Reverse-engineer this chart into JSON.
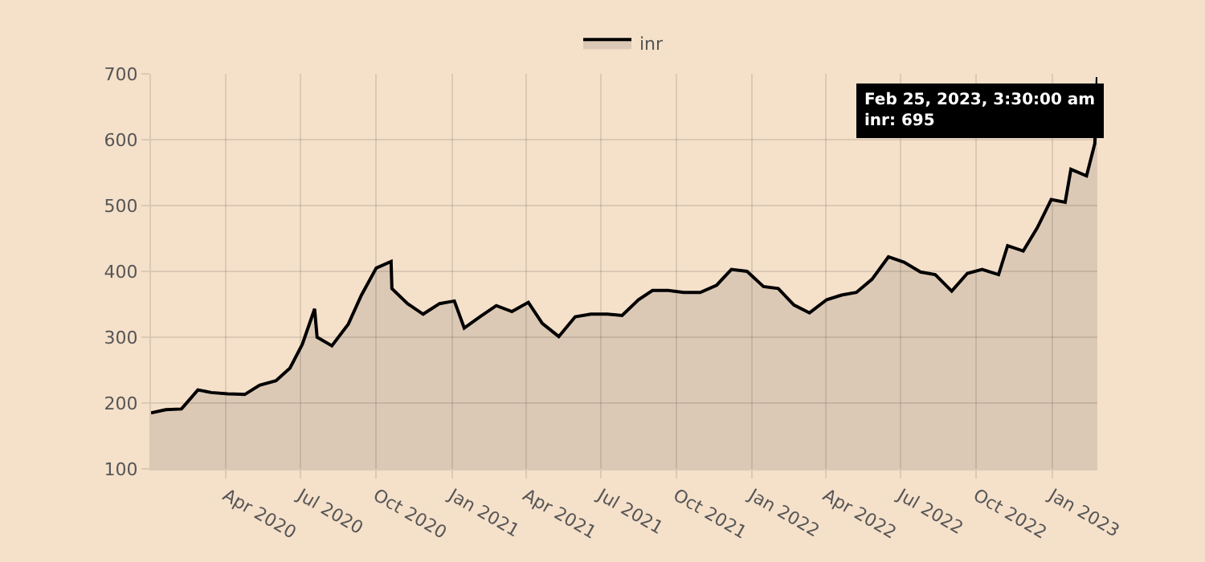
{
  "chart_data": {
    "type": "area",
    "legend": "top",
    "grid": true,
    "marker": "none",
    "line_style": "solid",
    "x": [
      "2020-01-01",
      "2020-01-19",
      "2020-02-07",
      "2020-02-27",
      "2020-03-14",
      "2020-04-03",
      "2020-04-24",
      "2020-05-12",
      "2020-06-01",
      "2020-06-18",
      "2020-07-03",
      "2020-07-18",
      "2020-07-21",
      "2020-08-08",
      "2020-08-28",
      "2020-09-13",
      "2020-10-01",
      "2020-10-19",
      "2020-10-20",
      "2020-11-08",
      "2020-11-27",
      "2020-12-17",
      "2021-01-04",
      "2021-01-16",
      "2021-02-04",
      "2021-02-24",
      "2021-03-15",
      "2021-04-04",
      "2021-04-21",
      "2021-05-11",
      "2021-05-31",
      "2021-06-19",
      "2021-07-09",
      "2021-07-27",
      "2021-08-16",
      "2021-09-02",
      "2021-09-21",
      "2021-10-10",
      "2021-10-30",
      "2021-11-19",
      "2021-12-07",
      "2021-12-26",
      "2022-01-15",
      "2022-02-02",
      "2022-02-21",
      "2022-03-12",
      "2022-04-02",
      "2022-04-20",
      "2022-05-08",
      "2022-05-27",
      "2022-06-16",
      "2022-07-05",
      "2022-07-25",
      "2022-08-12",
      "2022-09-01",
      "2022-09-20",
      "2022-10-08",
      "2022-10-28",
      "2022-11-08",
      "2022-11-27",
      "2022-12-14",
      "2022-12-31",
      "2023-01-17",
      "2023-01-24",
      "2023-02-12",
      "2023-02-22",
      "2023-02-25T03:30"
    ],
    "series": [
      {
        "name": "inr",
        "color": "#000000",
        "values": [
          185,
          190,
          191,
          220,
          216,
          214,
          213,
          227,
          234,
          253,
          289,
          343,
          300,
          287,
          320,
          364,
          405,
          415,
          374,
          351,
          335,
          351,
          355,
          314,
          331,
          348,
          339,
          353,
          321,
          301,
          331,
          335,
          335,
          333,
          357,
          371,
          371,
          368,
          368,
          379,
          403,
          400,
          377,
          374,
          349,
          337,
          357,
          364,
          368,
          388,
          422,
          414,
          399,
          395,
          370,
          397,
          403,
          395,
          439,
          431,
          466,
          509,
          505,
          555,
          545,
          594,
          695
        ]
      }
    ],
    "xlim": [
      "2020-01-01",
      "2023-02-25T03:30"
    ],
    "xticks": [
      {
        "value": "2020-04-01",
        "label": "Apr 2020"
      },
      {
        "value": "2020-07-01",
        "label": "Jul 2020"
      },
      {
        "value": "2020-10-01",
        "label": "Oct 2020"
      },
      {
        "value": "2021-01-01",
        "label": "Jan 2021"
      },
      {
        "value": "2021-04-01",
        "label": "Apr 2021"
      },
      {
        "value": "2021-07-01",
        "label": "Jul 2021"
      },
      {
        "value": "2021-10-01",
        "label": "Oct 2021"
      },
      {
        "value": "2022-01-01",
        "label": "Jan 2022"
      },
      {
        "value": "2022-04-01",
        "label": "Apr 2022"
      },
      {
        "value": "2022-07-01",
        "label": "Jul 2022"
      },
      {
        "value": "2022-10-01",
        "label": "Oct 2022"
      },
      {
        "value": "2023-01-01",
        "label": "Jan 2023"
      }
    ],
    "ylim": [
      100,
      700
    ],
    "yticks": [
      100,
      200,
      300,
      400,
      500,
      600,
      700
    ],
    "annotations": [
      {
        "text": "Feb 25, 2023, 3:30:00 am\ninr: 695",
        "x": "2023-02-25T03:30",
        "y": 695
      }
    ]
  }
}
